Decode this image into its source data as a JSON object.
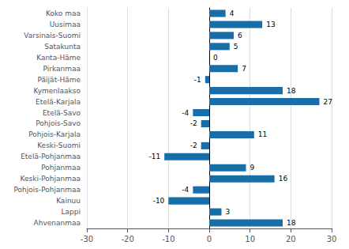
{
  "chart_data": {
    "type": "bar",
    "orientation": "horizontal",
    "categories": [
      "Koko maa",
      "Uusimaa",
      "Varsinais-Suomi",
      "Satakunta",
      "Kanta-Häme",
      "Pirkanmaa",
      "Päijät-Häme",
      "Kymenlaakso",
      "Etelä-Karjala",
      "Etelä-Savo",
      "Pohjois-Savo",
      "Pohjois-Karjala",
      "Keski-Suomi",
      "Etelä-Pohjanmaa",
      "Pohjanmaa",
      "Keski-Pohjanmaa",
      "Pohjois-Pohjanmaa",
      "Kainuu",
      "Lappi",
      "Ahvenanmaa"
    ],
    "values": [
      4,
      13,
      6,
      5,
      0,
      7,
      -1,
      18,
      27,
      -4,
      -2,
      11,
      -2,
      -11,
      9,
      16,
      -4,
      -10,
      3,
      18
    ],
    "color": "#1a6ea8",
    "xlim": [
      -30,
      30
    ],
    "xticks": [
      -30,
      -20,
      -10,
      0,
      10,
      20,
      30
    ],
    "grid": true,
    "data_labels": true
  }
}
